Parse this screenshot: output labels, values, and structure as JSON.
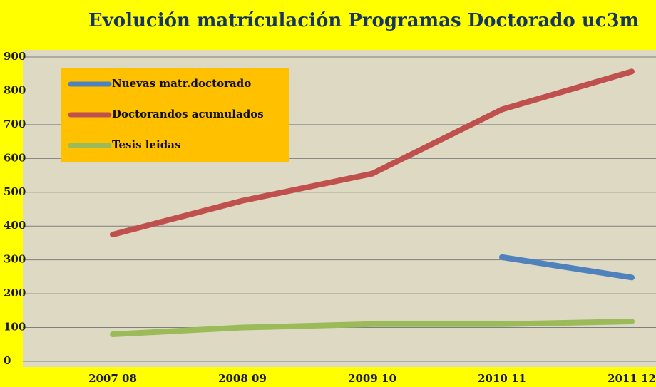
{
  "chart_data": {
    "type": "line",
    "title": "Evolución matrículación Programas Doctorado  uc3m",
    "categories": [
      "2007 08",
      "2008 09",
      "2009 10",
      "2010 11",
      "2011 12"
    ],
    "series": [
      {
        "name": "Nuevas matr.doctorado",
        "color": "#4f81bd",
        "values": [
          null,
          null,
          null,
          308,
          248
        ]
      },
      {
        "name": "Doctorandos acumulados",
        "color": "#c0504d",
        "values": [
          375,
          475,
          555,
          745,
          857
        ]
      },
      {
        "name": "Tesis leidas",
        "color": "#9bbb59",
        "values": [
          80,
          100,
          110,
          110,
          118
        ]
      }
    ],
    "ylim": [
      0,
      900
    ],
    "yticks": [
      0,
      100,
      200,
      300,
      400,
      500,
      600,
      700,
      800,
      900
    ],
    "grid": true,
    "legend": "top-left"
  }
}
